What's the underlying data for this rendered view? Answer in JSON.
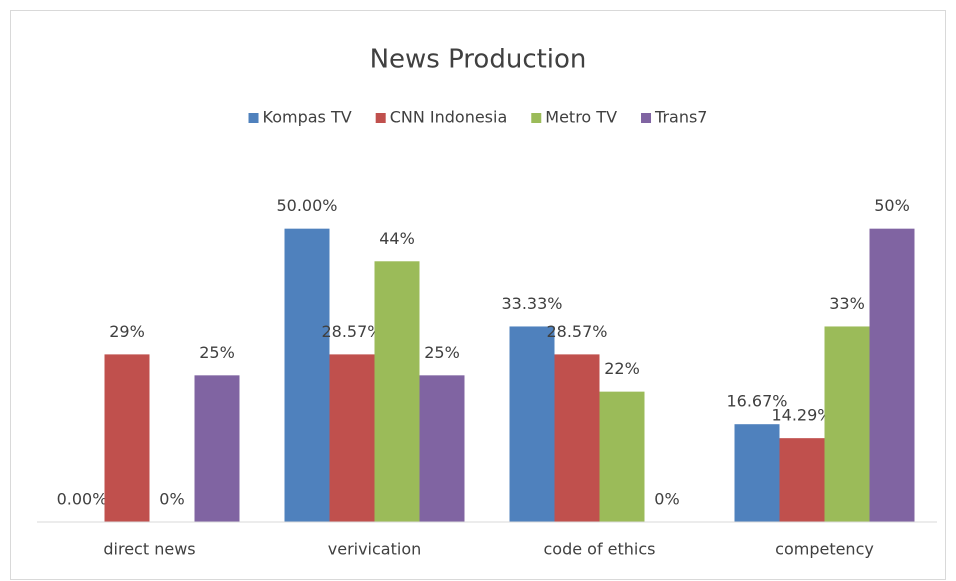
{
  "chart_data": {
    "type": "bar",
    "title": "News Production",
    "categories": [
      "direct news",
      "verivication",
      "code of ethics",
      "competency"
    ],
    "series": [
      {
        "name": "Kompas TV",
        "color": "#4f81bd",
        "values": [
          0,
          50,
          33.33,
          16.67
        ],
        "value_labels": [
          "0.00%",
          "50.00%",
          "33.33%",
          "16.67%"
        ]
      },
      {
        "name": "CNN Indonesia",
        "color": "#c0504d",
        "values": [
          28.57,
          28.57,
          28.57,
          14.29
        ],
        "value_labels": [
          "29%",
          "28.57%",
          "28.57%",
          "14.29%"
        ]
      },
      {
        "name": "Metro TV",
        "color": "#9bbb59",
        "values": [
          0,
          44.44,
          22.22,
          33.33
        ],
        "value_labels": [
          "0%",
          "44%",
          "22%",
          "33%"
        ]
      },
      {
        "name": "Trans7",
        "color": "#8064a2",
        "values": [
          25,
          25,
          0,
          50
        ],
        "value_labels": [
          "25%",
          "25%",
          "0%",
          "50%"
        ]
      }
    ],
    "ylim": [
      0,
      60
    ],
    "legend": "top"
  }
}
